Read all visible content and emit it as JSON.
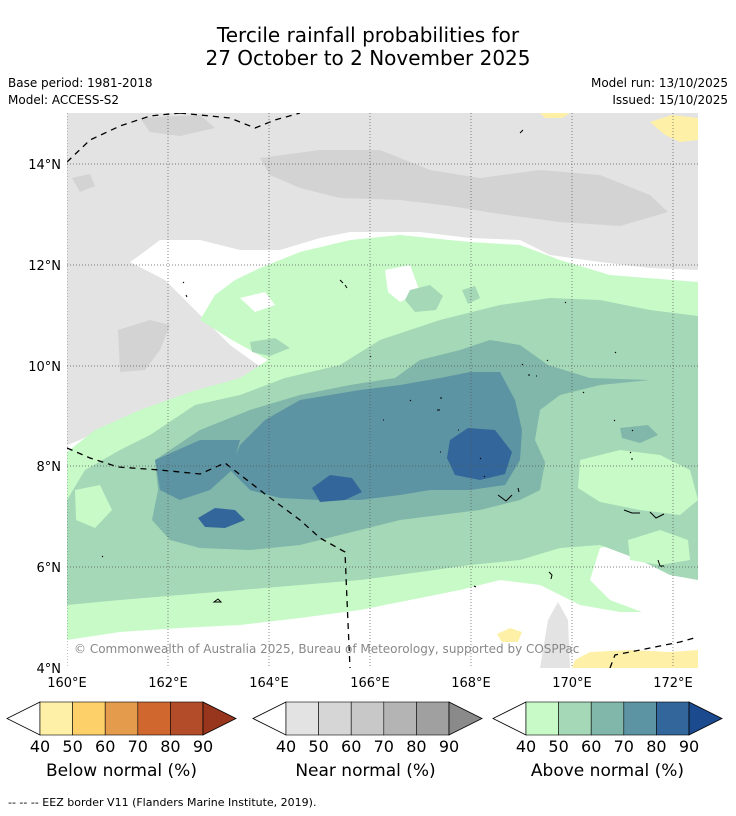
{
  "title": {
    "line1": "Tercile rainfall probabilities for",
    "line2": "27 October to 2 November 2025"
  },
  "meta": {
    "base_period": "Base period: 1981-2018",
    "model": "Model: ACCESS-S2",
    "model_run": "Model run: 13/10/2025",
    "issued": "Issued: 15/10/2025"
  },
  "map": {
    "lat_labels": [
      "14°N",
      "12°N",
      "10°N",
      "8°N",
      "6°N",
      "4°N"
    ],
    "lon_labels": [
      "160°E",
      "162°E",
      "164°E",
      "166°E",
      "168°E",
      "170°E",
      "172°E"
    ],
    "copyright": "© Commonwealth of Australia 2025, Bureau of Meteorology, supported by COSPPac"
  },
  "colorbars": {
    "ticks": [
      "40",
      "50",
      "60",
      "70",
      "80",
      "90"
    ],
    "below": {
      "title": "Below normal (%)",
      "colors": [
        "#fff0a8",
        "#fdd06a",
        "#e49b4c",
        "#d0672f",
        "#b34c28",
        "#98361d"
      ]
    },
    "near": {
      "title": "Near normal (%)",
      "colors": [
        "#e3e3e3",
        "#d6d6d6",
        "#c8c8c8",
        "#b4b4b4",
        "#a0a0a0",
        "#8a8a8a"
      ]
    },
    "above": {
      "title": "Above normal (%)",
      "colors": [
        "#c8fac8",
        "#a4d8b6",
        "#80b7aa",
        "#5c94a3",
        "#33669a",
        "#1c4a8e"
      ]
    }
  },
  "footnote": "--  --  -- EEZ border V11 (Flanders Marine Institute, 2019)."
}
